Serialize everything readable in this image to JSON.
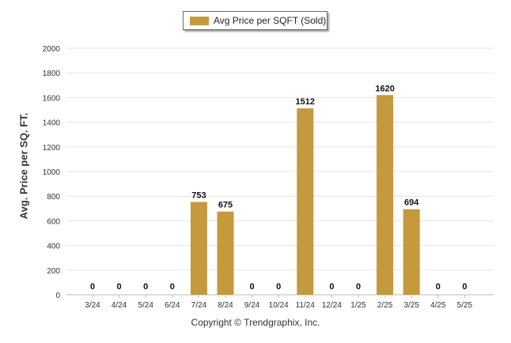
{
  "chart_data": {
    "type": "bar",
    "categories": [
      "3/24",
      "4/24",
      "5/24",
      "6/24",
      "7/24",
      "8/24",
      "9/24",
      "10/24",
      "11/24",
      "12/24",
      "1/25",
      "2/25",
      "3/25",
      "4/25",
      "5/25"
    ],
    "series": [
      {
        "name": "Avg Price per SQFT (Sold)",
        "values": [
          0,
          0,
          0,
          0,
          753,
          675,
          0,
          0,
          1512,
          0,
          0,
          1620,
          694,
          0,
          0
        ]
      }
    ],
    "data_labels": [
      "0",
      "0",
      "0",
      "0",
      "753",
      "675",
      "0",
      "0",
      "1512",
      "0",
      "0",
      "1620",
      "694",
      "0",
      "0"
    ],
    "ylabel": "Avg. Price per SQ. FT.",
    "ylim": [
      0,
      2000
    ],
    "yticks": [
      0,
      200,
      400,
      600,
      800,
      1000,
      1200,
      1400,
      1600,
      1800,
      2000
    ],
    "grid": true,
    "legend_position": "top-center",
    "bar_color": "#c49a3d"
  },
  "footer": {
    "copyright": "Copyright © Trendgraphix, Inc."
  }
}
